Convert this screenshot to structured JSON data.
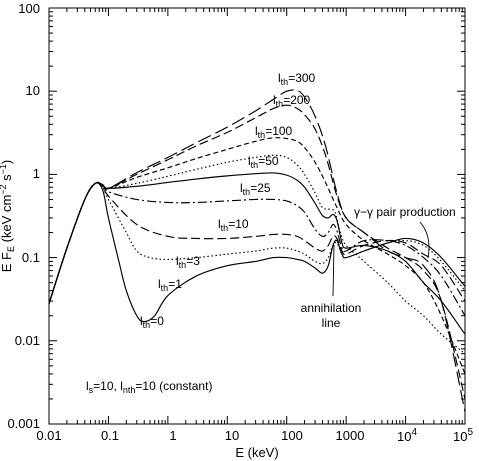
{
  "chart_data": {
    "type": "line",
    "title": "",
    "xlabel": "E (keV)",
    "ylabel": "E F",
    "ylabel_sub": "E",
    "ylabel_units": "(keV cm",
    "ylabel_units_exp1": "−2",
    "ylabel_units_mid": " s",
    "ylabel_units_exp2": "−1",
    "ylabel_units_end": ")",
    "x_scale": "log",
    "y_scale": "log",
    "xlim": [
      0.01,
      100000
    ],
    "ylim": [
      0.001,
      100
    ],
    "grid": false,
    "x_tick_labels": [
      "0.01",
      "0.1",
      "1",
      "10",
      "100",
      "1000",
      "10",
      "4",
      "10",
      "5"
    ],
    "y_tick_labels": [
      "0.001",
      "0.01",
      "0.1",
      "1",
      "10",
      "100"
    ],
    "params_text": {
      "main1": "l",
      "sub1": "s",
      "main2": "=10, l",
      "sub2": "nth",
      "main3": "=10 (constant)"
    },
    "pair_label": "γ−γ pair production",
    "annihilation_label_1": "annihilation",
    "annihilation_label_2": "line",
    "series": [
      {
        "main": "l",
        "sub": "th",
        "value": "=300",
        "dash": "14,5",
        "points": [
          [
            0.01,
            0.028
          ],
          [
            0.02,
            0.13
          ],
          [
            0.04,
            0.5
          ],
          [
            0.06,
            0.78
          ],
          [
            0.08,
            0.75
          ],
          [
            0.1,
            0.68
          ],
          [
            0.3,
            1.05
          ],
          [
            1,
            1.6
          ],
          [
            3,
            2.4
          ],
          [
            10,
            3.7
          ],
          [
            30,
            5.8
          ],
          [
            60,
            8
          ],
          [
            100,
            10
          ],
          [
            150,
            10.2
          ],
          [
            200,
            8.5
          ],
          [
            300,
            5
          ],
          [
            450,
            2.2
          ],
          [
            700,
            0.6
          ],
          [
            1000,
            0.3
          ],
          [
            2000,
            0.2
          ],
          [
            5000,
            0.12
          ],
          [
            10000,
            0.1
          ],
          [
            20000,
            0.08
          ],
          [
            40000,
            0.03
          ],
          [
            100000,
            0.0014
          ]
        ]
      },
      {
        "main": "l",
        "sub": "th",
        "value": "=200",
        "dash": "9,4",
        "points": [
          [
            0.01,
            0.028
          ],
          [
            0.02,
            0.13
          ],
          [
            0.04,
            0.5
          ],
          [
            0.06,
            0.78
          ],
          [
            0.08,
            0.75
          ],
          [
            0.1,
            0.68
          ],
          [
            0.3,
            1.0
          ],
          [
            1,
            1.5
          ],
          [
            3,
            2.2
          ],
          [
            10,
            3.2
          ],
          [
            30,
            4.8
          ],
          [
            60,
            6.2
          ],
          [
            100,
            6.8
          ],
          [
            150,
            6.2
          ],
          [
            200,
            5.2
          ],
          [
            300,
            3.5
          ],
          [
            450,
            1.7
          ],
          [
            700,
            0.55
          ],
          [
            1000,
            0.3
          ],
          [
            2000,
            0.2
          ],
          [
            5000,
            0.13
          ],
          [
            10000,
            0.1
          ],
          [
            20000,
            0.07
          ],
          [
            40000,
            0.03
          ],
          [
            100000,
            0.002
          ]
        ]
      },
      {
        "main": "l",
        "sub": "th",
        "value": "=100",
        "dash": "5,3",
        "points": [
          [
            0.01,
            0.028
          ],
          [
            0.02,
            0.13
          ],
          [
            0.04,
            0.5
          ],
          [
            0.06,
            0.78
          ],
          [
            0.08,
            0.75
          ],
          [
            0.1,
            0.68
          ],
          [
            0.3,
            0.92
          ],
          [
            1,
            1.2
          ],
          [
            3,
            1.55
          ],
          [
            10,
            2.0
          ],
          [
            30,
            2.5
          ],
          [
            60,
            2.75
          ],
          [
            100,
            2.7
          ],
          [
            150,
            2.5
          ],
          [
            200,
            2.1
          ],
          [
            300,
            1.4
          ],
          [
            450,
            0.8
          ],
          [
            700,
            0.4
          ],
          [
            1000,
            0.25
          ],
          [
            2000,
            0.16
          ],
          [
            5000,
            0.11
          ],
          [
            10000,
            0.08
          ],
          [
            20000,
            0.05
          ],
          [
            40000,
            0.02
          ],
          [
            100000,
            0.004
          ]
        ]
      },
      {
        "main": "l",
        "sub": "th",
        "value": "=50",
        "dash": "1.5,2.5",
        "points": [
          [
            0.01,
            0.028
          ],
          [
            0.02,
            0.13
          ],
          [
            0.04,
            0.5
          ],
          [
            0.06,
            0.78
          ],
          [
            0.08,
            0.75
          ],
          [
            0.1,
            0.68
          ],
          [
            0.3,
            0.78
          ],
          [
            1,
            0.95
          ],
          [
            3,
            1.15
          ],
          [
            10,
            1.4
          ],
          [
            30,
            1.6
          ],
          [
            60,
            1.7
          ],
          [
            100,
            1.6
          ],
          [
            150,
            1.3
          ],
          [
            200,
            1.0
          ],
          [
            300,
            0.6
          ],
          [
            400,
            0.4
          ],
          [
            550,
            0.38
          ],
          [
            650,
            0.35
          ],
          [
            800,
            0.2
          ],
          [
            1000,
            0.14
          ],
          [
            2000,
            0.09
          ],
          [
            5000,
            0.05
          ],
          [
            10000,
            0.03
          ],
          [
            20000,
            0.02
          ],
          [
            40000,
            0.012
          ],
          [
            100000,
            0.007
          ]
        ]
      },
      {
        "main": "l",
        "sub": "th",
        "value": "=25",
        "dash": "",
        "points": [
          [
            0.01,
            0.028
          ],
          [
            0.02,
            0.13
          ],
          [
            0.04,
            0.5
          ],
          [
            0.06,
            0.78
          ],
          [
            0.08,
            0.75
          ],
          [
            0.1,
            0.68
          ],
          [
            0.3,
            0.72
          ],
          [
            1,
            0.8
          ],
          [
            3,
            0.88
          ],
          [
            10,
            0.96
          ],
          [
            30,
            1.02
          ],
          [
            60,
            1.04
          ],
          [
            100,
            0.98
          ],
          [
            150,
            0.85
          ],
          [
            200,
            0.7
          ],
          [
            300,
            0.45
          ],
          [
            400,
            0.32
          ],
          [
            500,
            0.3
          ],
          [
            600,
            0.33
          ],
          [
            700,
            0.28
          ],
          [
            850,
            0.15
          ],
          [
            1000,
            0.13
          ],
          [
            2000,
            0.14
          ],
          [
            5000,
            0.12
          ],
          [
            10000,
            0.09
          ],
          [
            20000,
            0.05
          ],
          [
            40000,
            0.03
          ],
          [
            100000,
            0.012
          ]
        ]
      },
      {
        "main": "l",
        "sub": "th",
        "value": "=10",
        "dash": "9,3,2,3",
        "points": [
          [
            0.01,
            0.028
          ],
          [
            0.02,
            0.13
          ],
          [
            0.04,
            0.5
          ],
          [
            0.06,
            0.78
          ],
          [
            0.08,
            0.75
          ],
          [
            0.1,
            0.62
          ],
          [
            0.3,
            0.5
          ],
          [
            1,
            0.46
          ],
          [
            3,
            0.46
          ],
          [
            10,
            0.48
          ],
          [
            30,
            0.5
          ],
          [
            60,
            0.5
          ],
          [
            100,
            0.48
          ],
          [
            150,
            0.42
          ],
          [
            200,
            0.35
          ],
          [
            300,
            0.22
          ],
          [
            400,
            0.18
          ],
          [
            500,
            0.2
          ],
          [
            600,
            0.25
          ],
          [
            700,
            0.21
          ],
          [
            850,
            0.13
          ],
          [
            1000,
            0.12
          ],
          [
            2000,
            0.16
          ],
          [
            5000,
            0.16
          ],
          [
            10000,
            0.14
          ],
          [
            20000,
            0.1
          ],
          [
            40000,
            0.06
          ],
          [
            100000,
            0.02
          ]
        ]
      },
      {
        "main": "l",
        "sub": "th",
        "value": "=3",
        "dash": "9,4",
        "points": [
          [
            0.01,
            0.028
          ],
          [
            0.02,
            0.13
          ],
          [
            0.04,
            0.5
          ],
          [
            0.06,
            0.78
          ],
          [
            0.08,
            0.72
          ],
          [
            0.1,
            0.55
          ],
          [
            0.3,
            0.25
          ],
          [
            1,
            0.18
          ],
          [
            3,
            0.17
          ],
          [
            10,
            0.17
          ],
          [
            30,
            0.18
          ],
          [
            60,
            0.19
          ],
          [
            100,
            0.19
          ],
          [
            150,
            0.18
          ],
          [
            200,
            0.16
          ],
          [
            300,
            0.13
          ],
          [
            400,
            0.12
          ],
          [
            500,
            0.14
          ],
          [
            600,
            0.18
          ],
          [
            700,
            0.17
          ],
          [
            850,
            0.12
          ],
          [
            1000,
            0.11
          ],
          [
            2000,
            0.14
          ],
          [
            5000,
            0.16
          ],
          [
            10000,
            0.15
          ],
          [
            20000,
            0.11
          ],
          [
            40000,
            0.08
          ],
          [
            100000,
            0.03
          ]
        ]
      },
      {
        "main": "l",
        "sub": "th",
        "value": "=1",
        "dash": "1.5,2.5",
        "points": [
          [
            0.01,
            0.028
          ],
          [
            0.02,
            0.13
          ],
          [
            0.04,
            0.5
          ],
          [
            0.06,
            0.78
          ],
          [
            0.08,
            0.7
          ],
          [
            0.1,
            0.5
          ],
          [
            0.2,
            0.2
          ],
          [
            0.3,
            0.12
          ],
          [
            0.5,
            0.1
          ],
          [
            1,
            0.095
          ],
          [
            3,
            0.1
          ],
          [
            10,
            0.11
          ],
          [
            30,
            0.12
          ],
          [
            60,
            0.13
          ],
          [
            100,
            0.13
          ],
          [
            150,
            0.12
          ],
          [
            200,
            0.11
          ],
          [
            300,
            0.09
          ],
          [
            400,
            0.085
          ],
          [
            500,
            0.1
          ],
          [
            600,
            0.14
          ],
          [
            700,
            0.15
          ],
          [
            850,
            0.11
          ],
          [
            1000,
            0.1
          ],
          [
            2000,
            0.12
          ],
          [
            5000,
            0.15
          ],
          [
            10000,
            0.16
          ],
          [
            20000,
            0.14
          ],
          [
            40000,
            0.09
          ],
          [
            100000,
            0.04
          ]
        ]
      },
      {
        "main": "l",
        "sub": "th",
        "value": "=0",
        "dash": "",
        "points": [
          [
            0.01,
            0.028
          ],
          [
            0.02,
            0.13
          ],
          [
            0.04,
            0.5
          ],
          [
            0.06,
            0.78
          ],
          [
            0.08,
            0.65
          ],
          [
            0.1,
            0.3
          ],
          [
            0.15,
            0.09
          ],
          [
            0.2,
            0.04
          ],
          [
            0.3,
            0.02
          ],
          [
            0.4,
            0.017
          ],
          [
            0.6,
            0.02
          ],
          [
            1,
            0.035
          ],
          [
            3,
            0.06
          ],
          [
            10,
            0.08
          ],
          [
            30,
            0.09
          ],
          [
            60,
            0.1
          ],
          [
            100,
            0.1
          ],
          [
            150,
            0.095
          ],
          [
            200,
            0.09
          ],
          [
            300,
            0.075
          ],
          [
            400,
            0.065
          ],
          [
            500,
            0.08
          ],
          [
            600,
            0.14
          ],
          [
            700,
            0.16
          ],
          [
            850,
            0.11
          ],
          [
            1000,
            0.1
          ],
          [
            2000,
            0.12
          ],
          [
            5000,
            0.15
          ],
          [
            10000,
            0.17
          ],
          [
            20000,
            0.15
          ],
          [
            40000,
            0.1
          ],
          [
            100000,
            0.045
          ]
        ]
      }
    ]
  }
}
